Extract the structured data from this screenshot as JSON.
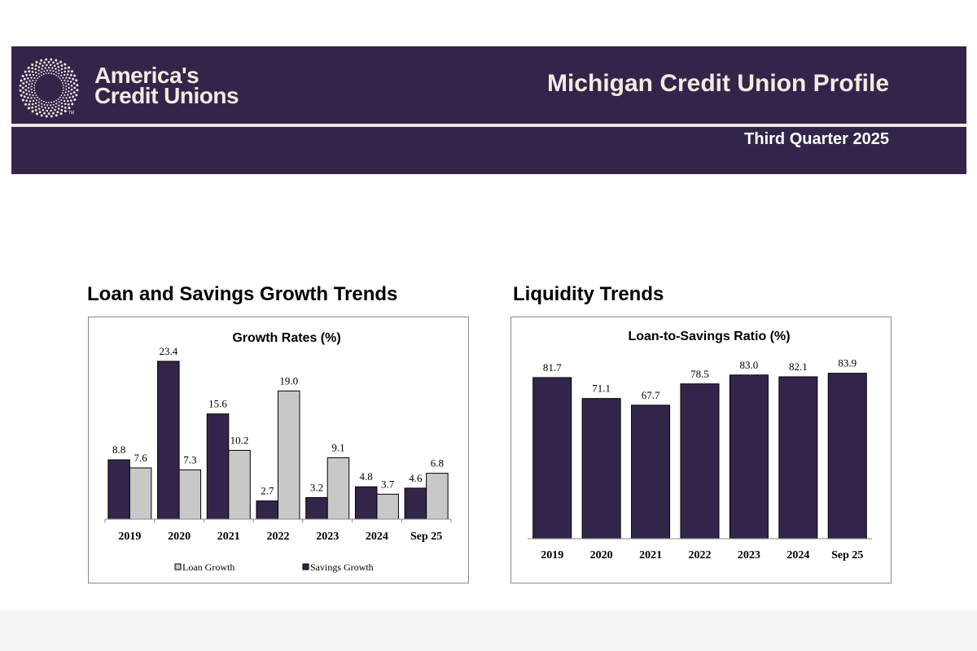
{
  "header": {
    "logo_text_line1": "America's",
    "logo_text_line2": "Credit Unions",
    "logo_tm": "TM",
    "title": "Michigan Credit Union Profile",
    "subtitle": "Third Quarter 2025"
  },
  "colors": {
    "brand": "#33254a",
    "secondary_bar": "#c8c8c8",
    "header_text": "#f3ece3"
  },
  "sections": {
    "left_title": "Loan and Savings Growth Trends",
    "right_title": "Liquidity Trends"
  },
  "chart_data": [
    {
      "type": "bar",
      "title": "Growth Rates (%)",
      "categories": [
        "2019",
        "2020",
        "2021",
        "2022",
        "2023",
        "2024",
        "Sep 25"
      ],
      "series": [
        {
          "name": "Savings Growth",
          "color": "#33254a",
          "values": [
            8.8,
            23.4,
            15.6,
            2.7,
            3.2,
            4.8,
            4.6
          ]
        },
        {
          "name": "Loan Growth",
          "color": "#c8c8c8",
          "values": [
            7.6,
            7.3,
            10.2,
            19.0,
            9.1,
            3.7,
            6.8
          ]
        }
      ],
      "legend": [
        "Loan Growth",
        "Savings Growth"
      ],
      "legend_placement": "bottom",
      "ylim": [
        0,
        23.4
      ],
      "grid": false
    },
    {
      "type": "bar",
      "title": "Loan-to-Savings Ratio (%)",
      "categories": [
        "2019",
        "2020",
        "2021",
        "2022",
        "2023",
        "2024",
        "Sep 25"
      ],
      "values": [
        81.7,
        71.1,
        67.7,
        78.5,
        83.0,
        82.1,
        83.9
      ],
      "color": "#33254a",
      "ylim": [
        0,
        83.9
      ],
      "grid": false
    }
  ]
}
